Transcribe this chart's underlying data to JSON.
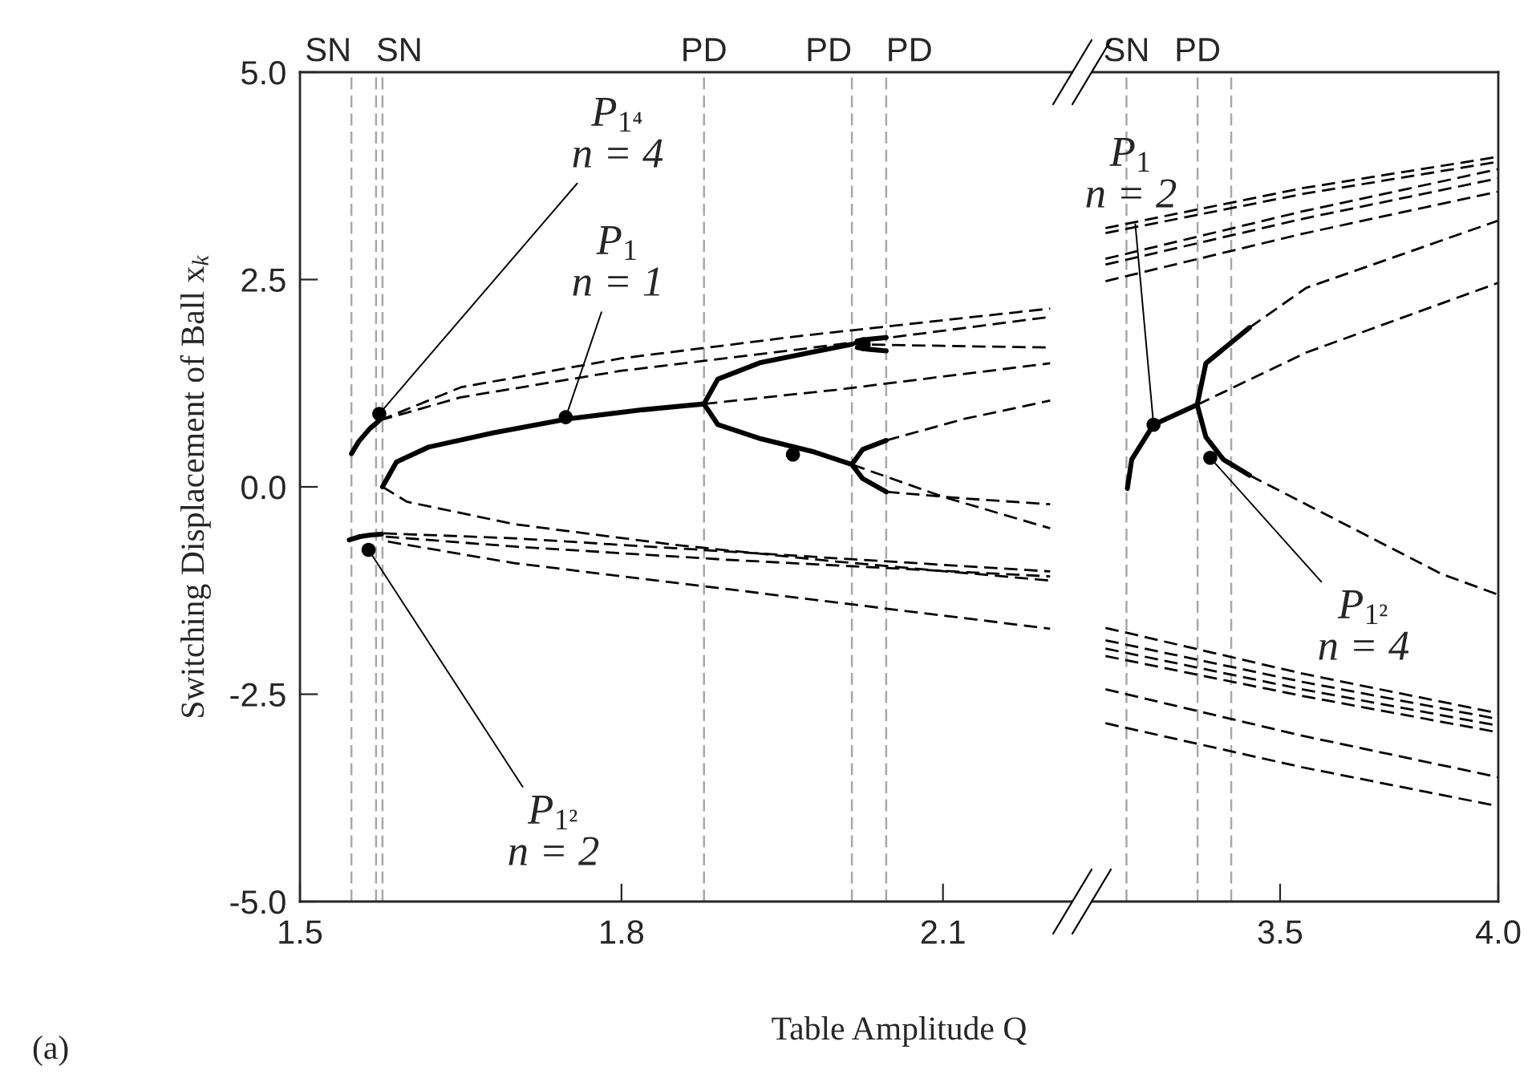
{
  "chart_data": [
    {
      "type": "line",
      "xlabel": "Table Amplitude Q",
      "ylabel": "Switching Displacement of Ball x$_{k}$",
      "xlim": [
        1.5,
        2.22
      ],
      "ylim": [
        -5.0,
        5.0
      ],
      "xticks": [
        1.5,
        1.8,
        2.1
      ],
      "yticks": [
        {
          "value": -5.0,
          "label": "-5.0"
        },
        {
          "value": -2.5,
          "label": "-2.5"
        },
        {
          "value": 0.0,
          "label": "0.0"
        },
        {
          "value": 2.5,
          "label": "2.5"
        },
        {
          "value": 5.0,
          "label": "5.0"
        }
      ],
      "ref_lines": [
        {
          "axis": "x",
          "value": 1.548,
          "label": "SN",
          "color": "#a8a8a8",
          "line_style": "dashed"
        },
        {
          "axis": "x",
          "value": 1.571,
          "label": "SN",
          "color": "#a8a8a8",
          "line_style": "dashed"
        },
        {
          "axis": "x",
          "value": 1.577,
          "label": null,
          "color": "#a8a8a8",
          "line_style": "dashed"
        },
        {
          "axis": "x",
          "value": 1.877,
          "label": "PD",
          "color": "#a8a8a8",
          "line_style": "dashed"
        },
        {
          "axis": "x",
          "value": 2.015,
          "label": "PD",
          "color": "#a8a8a8",
          "line_style": "dashed"
        },
        {
          "axis": "x",
          "value": 2.047,
          "label": "PD",
          "color": "#a8a8a8",
          "line_style": "dashed"
        }
      ],
      "annotations": [
        {
          "text": "P$_{1⁴}$\nn = 4",
          "x": 1.574,
          "y": 0.88
        },
        {
          "text": "P$_{1}$\nn = 1",
          "x": 1.748,
          "y": 0.84
        },
        {
          "text": "P$_{1²}$\nn = 2",
          "x": 1.564,
          "y": -0.76
        },
        "(a)"
      ],
      "series": [
        {
          "type": "line",
          "color": "#000000",
          "line_style": "solid",
          "x": [
            1.577,
            1.59,
            1.62,
            1.68,
            1.75,
            1.82,
            1.877
          ],
          "values": [
            0.0,
            0.3,
            0.48,
            0.65,
            0.82,
            0.93,
            1.0
          ]
        },
        {
          "type": "line",
          "color": "#000000",
          "line_style": "dashed",
          "x": [
            1.577,
            1.6,
            1.7,
            1.85,
            2.0,
            2.2
          ],
          "values": [
            0.0,
            -0.18,
            -0.45,
            -0.7,
            -0.9,
            -1.13
          ]
        },
        {
          "type": "line",
          "color": "#000000",
          "line_style": "dashed",
          "x": [
            1.877,
            2.0,
            2.1,
            2.2
          ],
          "values": [
            1.0,
            1.17,
            1.33,
            1.49
          ]
        },
        {
          "type": "line",
          "color": "#000000",
          "line_style": "solid",
          "x": [
            2.015,
            1.98,
            1.93,
            1.89,
            1.877,
            1.89,
            1.93,
            1.98,
            2.015
          ],
          "values": [
            1.72,
            1.63,
            1.5,
            1.3,
            1.0,
            0.75,
            0.58,
            0.42,
            0.27
          ]
        },
        {
          "type": "line",
          "color": "#000000",
          "line_style": "dashed",
          "x": [
            1.574,
            1.65,
            1.8,
            1.967,
            2.2
          ],
          "values": [
            0.8,
            1.2,
            1.55,
            1.82,
            2.15
          ]
        },
        {
          "type": "line",
          "color": "#000000",
          "line_style": "dashed",
          "x": [
            1.574,
            1.65,
            1.8,
            1.967,
            2.2
          ],
          "values": [
            0.8,
            1.08,
            1.4,
            1.66,
            2.05
          ]
        },
        {
          "type": "line",
          "color": "#000000",
          "line_style": "solid",
          "x": [
            2.02,
            2.03,
            2.047
          ],
          "values": [
            1.76,
            1.78,
            1.8
          ]
        },
        {
          "type": "line",
          "color": "#000000",
          "line_style": "solid",
          "x": [
            2.02,
            2.03,
            2.047
          ],
          "values": [
            1.68,
            1.66,
            1.64
          ]
        },
        {
          "type": "line",
          "color": "#000000",
          "line_style": "dashed",
          "x": [
            2.015,
            2.1,
            2.2
          ],
          "values": [
            1.72,
            1.7,
            1.68
          ]
        },
        {
          "type": "line",
          "color": "#000000",
          "line_style": "solid",
          "x": [
            2.015,
            2.025,
            2.047
          ],
          "values": [
            0.27,
            0.45,
            0.56
          ]
        },
        {
          "type": "line",
          "color": "#000000",
          "line_style": "dashed",
          "x": [
            2.047,
            2.12,
            2.2
          ],
          "values": [
            0.56,
            0.82,
            1.04
          ]
        },
        {
          "type": "line",
          "color": "#000000",
          "line_style": "solid",
          "x": [
            2.015,
            2.025,
            2.047
          ],
          "values": [
            0.27,
            0.1,
            -0.06
          ]
        },
        {
          "type": "line",
          "color": "#000000",
          "line_style": "dashed",
          "x": [
            2.047,
            2.12,
            2.2
          ],
          "values": [
            -0.06,
            -0.14,
            -0.21
          ]
        },
        {
          "type": "line",
          "color": "#000000",
          "line_style": "dashed",
          "x": [
            2.015,
            2.1,
            2.2
          ],
          "values": [
            0.27,
            -0.12,
            -0.5
          ]
        },
        {
          "type": "line",
          "color": "#000000",
          "line_style": "solid",
          "x": [
            1.548,
            1.555,
            1.565,
            1.574
          ],
          "values": [
            0.4,
            0.55,
            0.7,
            0.8
          ]
        },
        {
          "type": "line",
          "color": "#000000",
          "line_style": "dashed",
          "x": [
            1.578,
            1.7,
            1.9,
            2.2
          ],
          "values": [
            -0.56,
            -0.62,
            -0.78,
            -1.02
          ]
        },
        {
          "type": "line",
          "color": "#000000",
          "line_style": "dashed",
          "x": [
            1.58,
            1.7,
            1.9,
            2.2
          ],
          "values": [
            -0.6,
            -0.72,
            -0.88,
            -1.08
          ]
        },
        {
          "type": "line",
          "color": "#000000",
          "line_style": "dashed",
          "x": [
            1.582,
            1.7,
            1.878,
            2.2
          ],
          "values": [
            -0.66,
            -0.92,
            -1.2,
            -1.71
          ]
        },
        {
          "type": "line",
          "color": "#000000",
          "line_style": "solid",
          "x": [
            1.546,
            1.556,
            1.566,
            1.576
          ],
          "values": [
            -0.64,
            -0.6,
            -0.58,
            -0.57
          ]
        },
        {
          "type": "scatter",
          "color": "#000000",
          "marker": "circle",
          "x": [
            1.574,
            1.748,
            1.564,
            2.026,
            1.96
          ],
          "values": [
            0.88,
            0.84,
            -0.76,
            1.72,
            0.39
          ]
        }
      ]
    },
    {
      "type": "line",
      "xlim": [
        3.07,
        4.0
      ],
      "ylim": [
        -5.0,
        5.0
      ],
      "xticks": [
        3.5,
        {
          "value": 4.0,
          "label": "4.0"
        }
      ],
      "tick_labels": "x",
      "ref_lines": [
        {
          "axis": "x",
          "value": 3.148,
          "label": "SN",
          "color": "#a8a8a8",
          "line_style": "dashed"
        },
        {
          "axis": "x",
          "value": 3.311,
          "label": "PD",
          "color": "#a8a8a8",
          "line_style": "dashed"
        },
        {
          "axis": "x",
          "value": 3.388,
          "label": null,
          "color": "#a8a8a8",
          "line_style": "dashed"
        }
      ],
      "annotations": [
        {
          "text": "P$_{1}$\nn = 2",
          "x": 3.21,
          "y": 0.75
        },
        {
          "text": "P$_{1²}$\nn = 4",
          "x": 3.34,
          "y": 0.35
        }
      ],
      "series": [
        {
          "type": "line",
          "color": "#000000",
          "line_style": "solid",
          "x": [
            3.15,
            3.16,
            3.21,
            3.31
          ],
          "values": [
            -0.02,
            0.33,
            0.75,
            0.99
          ]
        },
        {
          "type": "line",
          "color": "#000000",
          "line_style": "dashed",
          "x": [
            3.31,
            3.56,
            4.0
          ],
          "values": [
            0.99,
            1.62,
            2.46
          ]
        },
        {
          "type": "line",
          "color": "#000000",
          "line_style": "solid",
          "x": [
            3.43,
            3.33,
            3.31,
            3.33,
            3.37,
            3.43
          ],
          "values": [
            1.92,
            1.49,
            0.99,
            0.6,
            0.33,
            0.14
          ]
        },
        {
          "type": "line",
          "color": "#000000",
          "line_style": "dashed",
          "x": [
            3.43,
            3.56,
            4.0
          ],
          "values": [
            1.92,
            2.4,
            3.21
          ]
        },
        {
          "type": "line",
          "color": "#000000",
          "line_style": "dashed",
          "x": [
            3.43,
            3.87,
            4.0
          ],
          "values": [
            0.14,
            -1.05,
            -1.3
          ]
        },
        {
          "type": "line",
          "color": "#000000",
          "line_style": "dashed",
          "x": [
            3.1,
            3.55,
            4.0
          ],
          "values": [
            3.12,
            3.6,
            3.98
          ]
        },
        {
          "type": "line",
          "color": "#000000",
          "line_style": "dashed",
          "x": [
            3.1,
            3.55,
            4.0
          ],
          "values": [
            3.06,
            3.53,
            3.92
          ]
        },
        {
          "type": "line",
          "color": "#000000",
          "line_style": "dashed",
          "x": [
            3.1,
            3.55,
            4.0
          ],
          "values": [
            2.75,
            3.32,
            3.83
          ]
        },
        {
          "type": "line",
          "color": "#000000",
          "line_style": "dashed",
          "x": [
            3.1,
            3.55,
            4.0
          ],
          "values": [
            2.68,
            3.23,
            3.72
          ]
        },
        {
          "type": "line",
          "color": "#000000",
          "line_style": "dashed",
          "x": [
            3.1,
            3.55,
            4.0
          ],
          "values": [
            2.48,
            3.05,
            3.56
          ]
        },
        {
          "type": "line",
          "color": "#000000",
          "line_style": "dashed",
          "x": [
            3.1,
            3.55,
            4.0
          ],
          "values": [
            -1.7,
            -2.25,
            -2.73
          ]
        },
        {
          "type": "line",
          "color": "#000000",
          "line_style": "dashed",
          "x": [
            3.1,
            3.55,
            4.0
          ],
          "values": [
            -1.85,
            -2.35,
            -2.8
          ]
        },
        {
          "type": "line",
          "color": "#000000",
          "line_style": "dashed",
          "x": [
            3.1,
            3.55,
            4.0
          ],
          "values": [
            -1.95,
            -2.44,
            -2.88
          ]
        },
        {
          "type": "line",
          "color": "#000000",
          "line_style": "dashed",
          "x": [
            3.1,
            3.55,
            4.0
          ],
          "values": [
            -2.04,
            -2.52,
            -2.96
          ]
        },
        {
          "type": "line",
          "color": "#000000",
          "line_style": "dashed",
          "x": [
            3.1,
            3.55,
            4.0
          ],
          "values": [
            -2.44,
            -3.0,
            -3.5
          ]
        },
        {
          "type": "line",
          "color": "#000000",
          "line_style": "dashed",
          "x": [
            3.1,
            3.55,
            4.0
          ],
          "values": [
            -2.85,
            -3.38,
            -3.85
          ]
        },
        {
          "type": "scatter",
          "color": "#000000",
          "marker": "circle",
          "x": [
            3.21,
            3.34
          ],
          "values": [
            0.75,
            0.35
          ]
        }
      ]
    }
  ]
}
